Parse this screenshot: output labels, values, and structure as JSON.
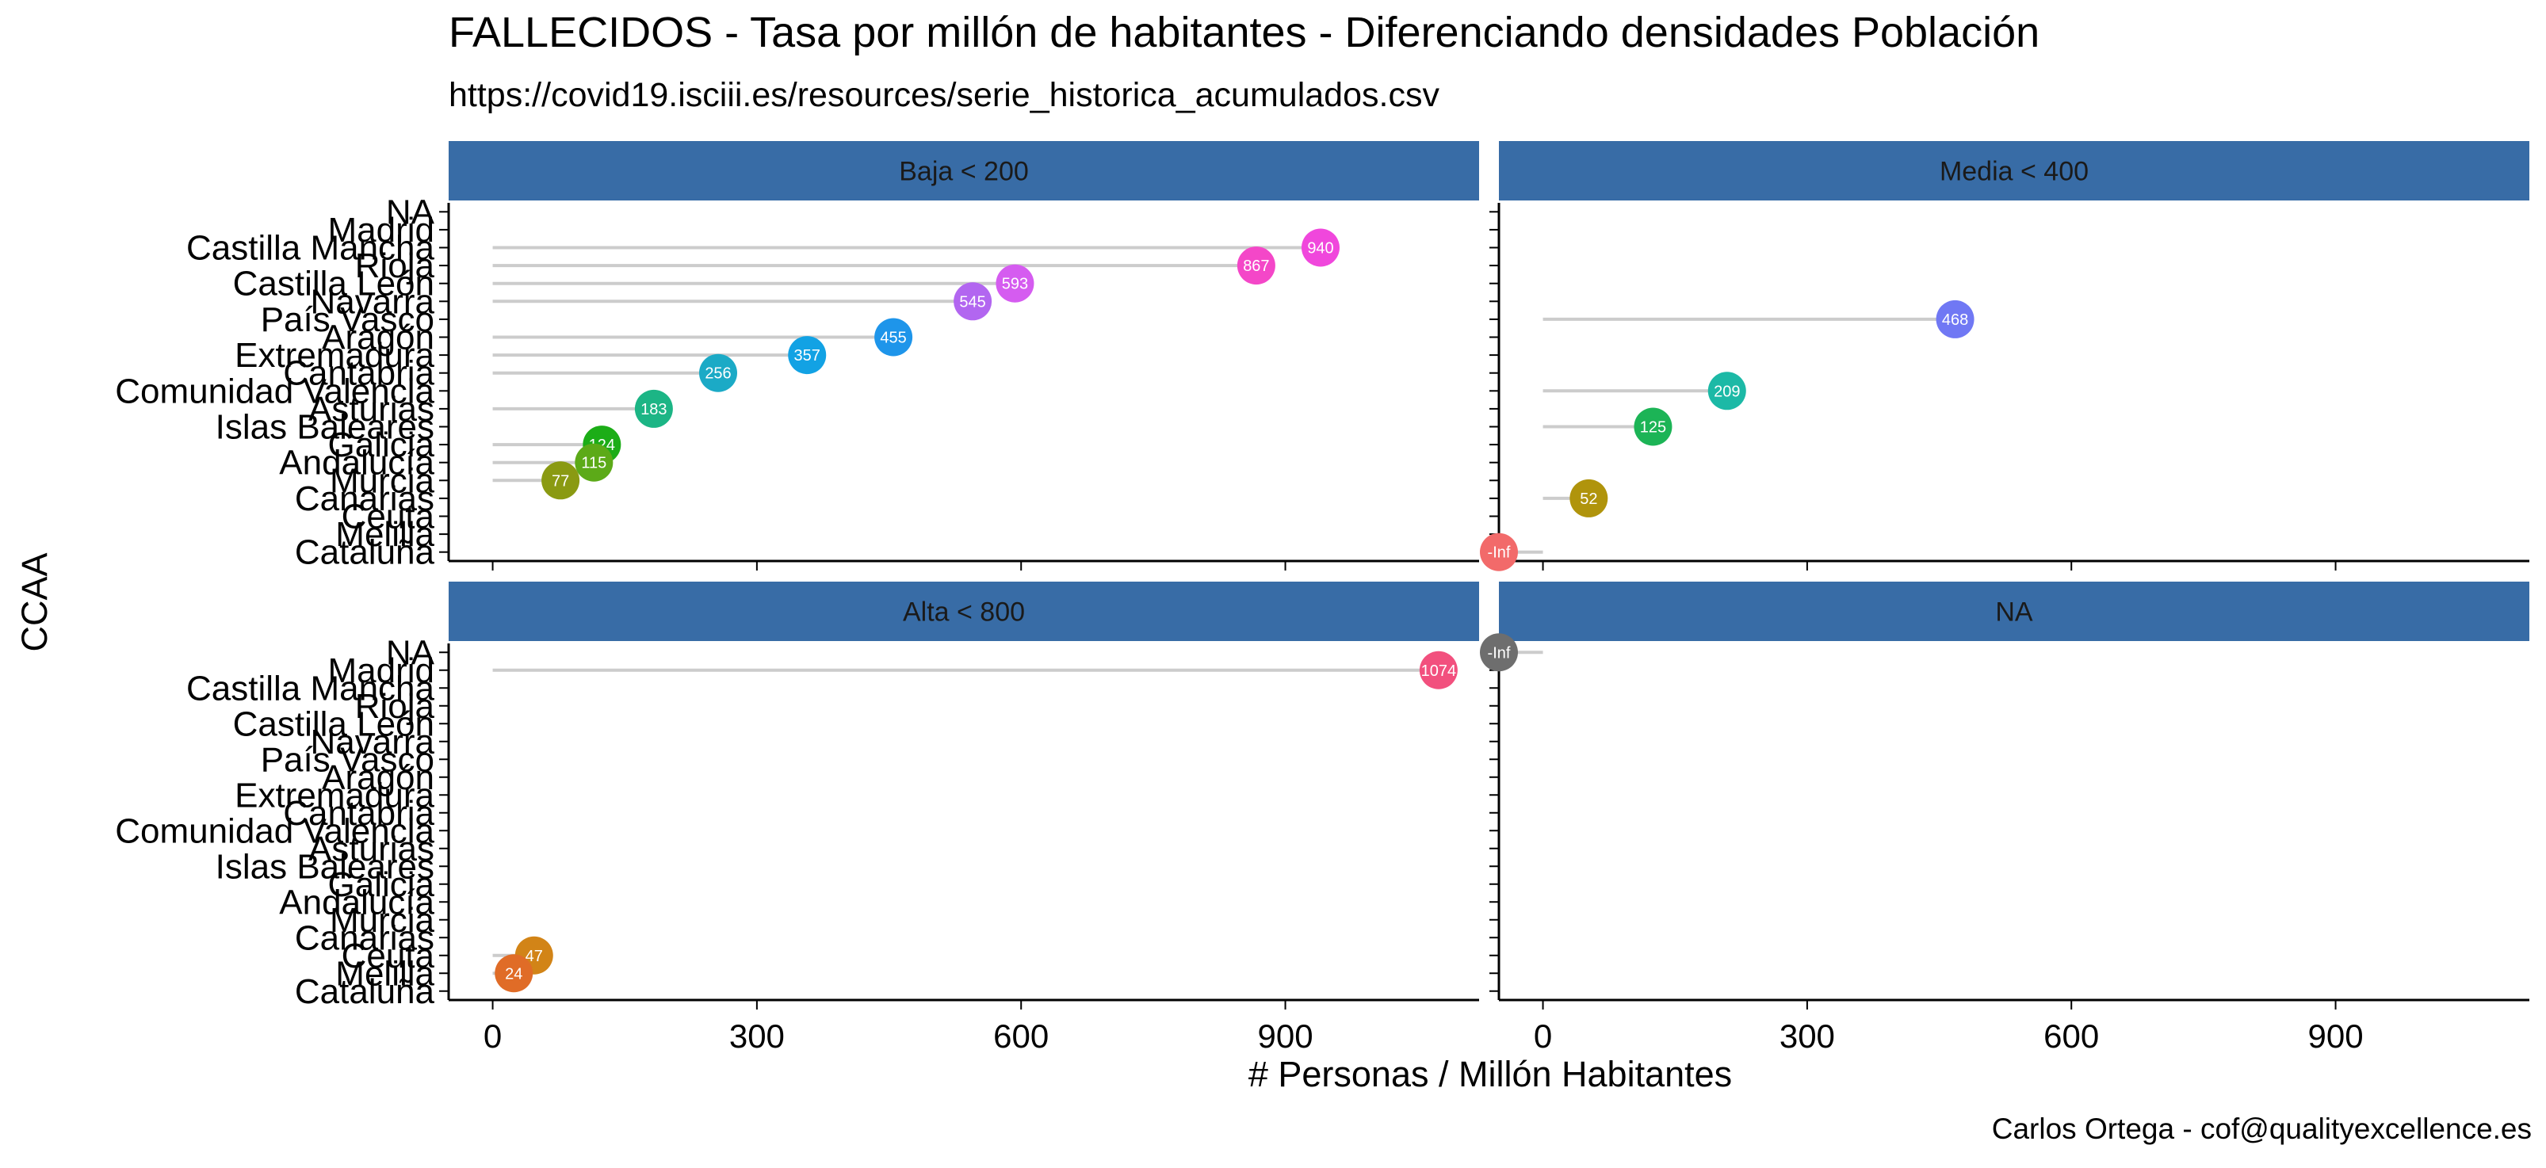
{
  "chart_data": {
    "type": "lollipop",
    "title": "FALLECIDOS - Tasa por millón de habitantes - Diferenciando densidades Población",
    "subtitle": "https://covid19.isciii.es/resources/serie_historica_acumulados.csv",
    "caption": "Carlos Ortega - cof@qualityexcellence.es",
    "xlabel": "# Personas / Millón Habitantes",
    "ylabel": "CCAA",
    "xlim": [
      -50,
      1120
    ],
    "xticks": [
      0,
      300,
      600,
      900
    ],
    "grid": false,
    "legend": "none",
    "categories": [
      "NA",
      "Madrid",
      "Castilla Mancha",
      "Rioja",
      "Castilla León",
      "Navarra",
      "País Vasco",
      "Aragón",
      "Extremadura",
      "Cantabria",
      "Comunidad Valencia",
      "Asturias",
      "Islas Baleares",
      "Galicia",
      "Andalucía",
      "Murcia",
      "Canarias",
      "Ceuta",
      "Melilla",
      "Cataluña"
    ],
    "facets": [
      {
        "strip": "Baja < 200",
        "points": [
          {
            "category": "Castilla Mancha",
            "value": 940,
            "label": "940",
            "color": "#F047DC"
          },
          {
            "category": "Rioja",
            "value": 867,
            "label": "867",
            "color": "#F447C8"
          },
          {
            "category": "Castilla León",
            "value": 593,
            "label": "593",
            "color": "#D55CF0"
          },
          {
            "category": "Navarra",
            "value": 545,
            "label": "545",
            "color": "#B266F0"
          },
          {
            "category": "Aragón",
            "value": 455,
            "label": "455",
            "color": "#1E95EA"
          },
          {
            "category": "Extremadura",
            "value": 357,
            "label": "357",
            "color": "#12A2E4"
          },
          {
            "category": "Cantabria",
            "value": 256,
            "label": "256",
            "color": "#1BAAC6"
          },
          {
            "category": "Asturias",
            "value": 183,
            "label": "183",
            "color": "#1CB585"
          },
          {
            "category": "Galicia",
            "value": 124,
            "label": "124",
            "color": "#1CAD17"
          },
          {
            "category": "Andalucía",
            "value": 115,
            "label": "115",
            "color": "#5CAA18"
          },
          {
            "category": "Murcia",
            "value": 77,
            "label": "77",
            "color": "#8A9A12"
          }
        ]
      },
      {
        "strip": "Media < 400",
        "points": [
          {
            "category": "País Vasco",
            "value": 468,
            "label": "468",
            "color": "#7078F4"
          },
          {
            "category": "Comunidad Valencia",
            "value": 209,
            "label": "209",
            "color": "#1CB9A6"
          },
          {
            "category": "Islas Baleares",
            "value": 125,
            "label": "125",
            "color": "#1CB456"
          },
          {
            "category": "Canarias",
            "value": 52,
            "label": "52",
            "color": "#B0940C"
          },
          {
            "category": "Cataluña",
            "value": "-Inf",
            "label": "-Inf",
            "color": "#F26A6A"
          }
        ]
      },
      {
        "strip": "Alta < 800",
        "points": [
          {
            "category": "Madrid",
            "value": 1074,
            "label": "1074",
            "color": "#F2507E"
          },
          {
            "category": "Ceuta",
            "value": 47,
            "label": "47",
            "color": "#D28417"
          },
          {
            "category": "Melilla",
            "value": 24,
            "label": "24",
            "color": "#E06C27"
          }
        ]
      },
      {
        "strip": "NA",
        "points": [
          {
            "category": "NA",
            "value": "-Inf",
            "label": "-Inf",
            "color": "#6E6E6E"
          }
        ]
      }
    ]
  }
}
